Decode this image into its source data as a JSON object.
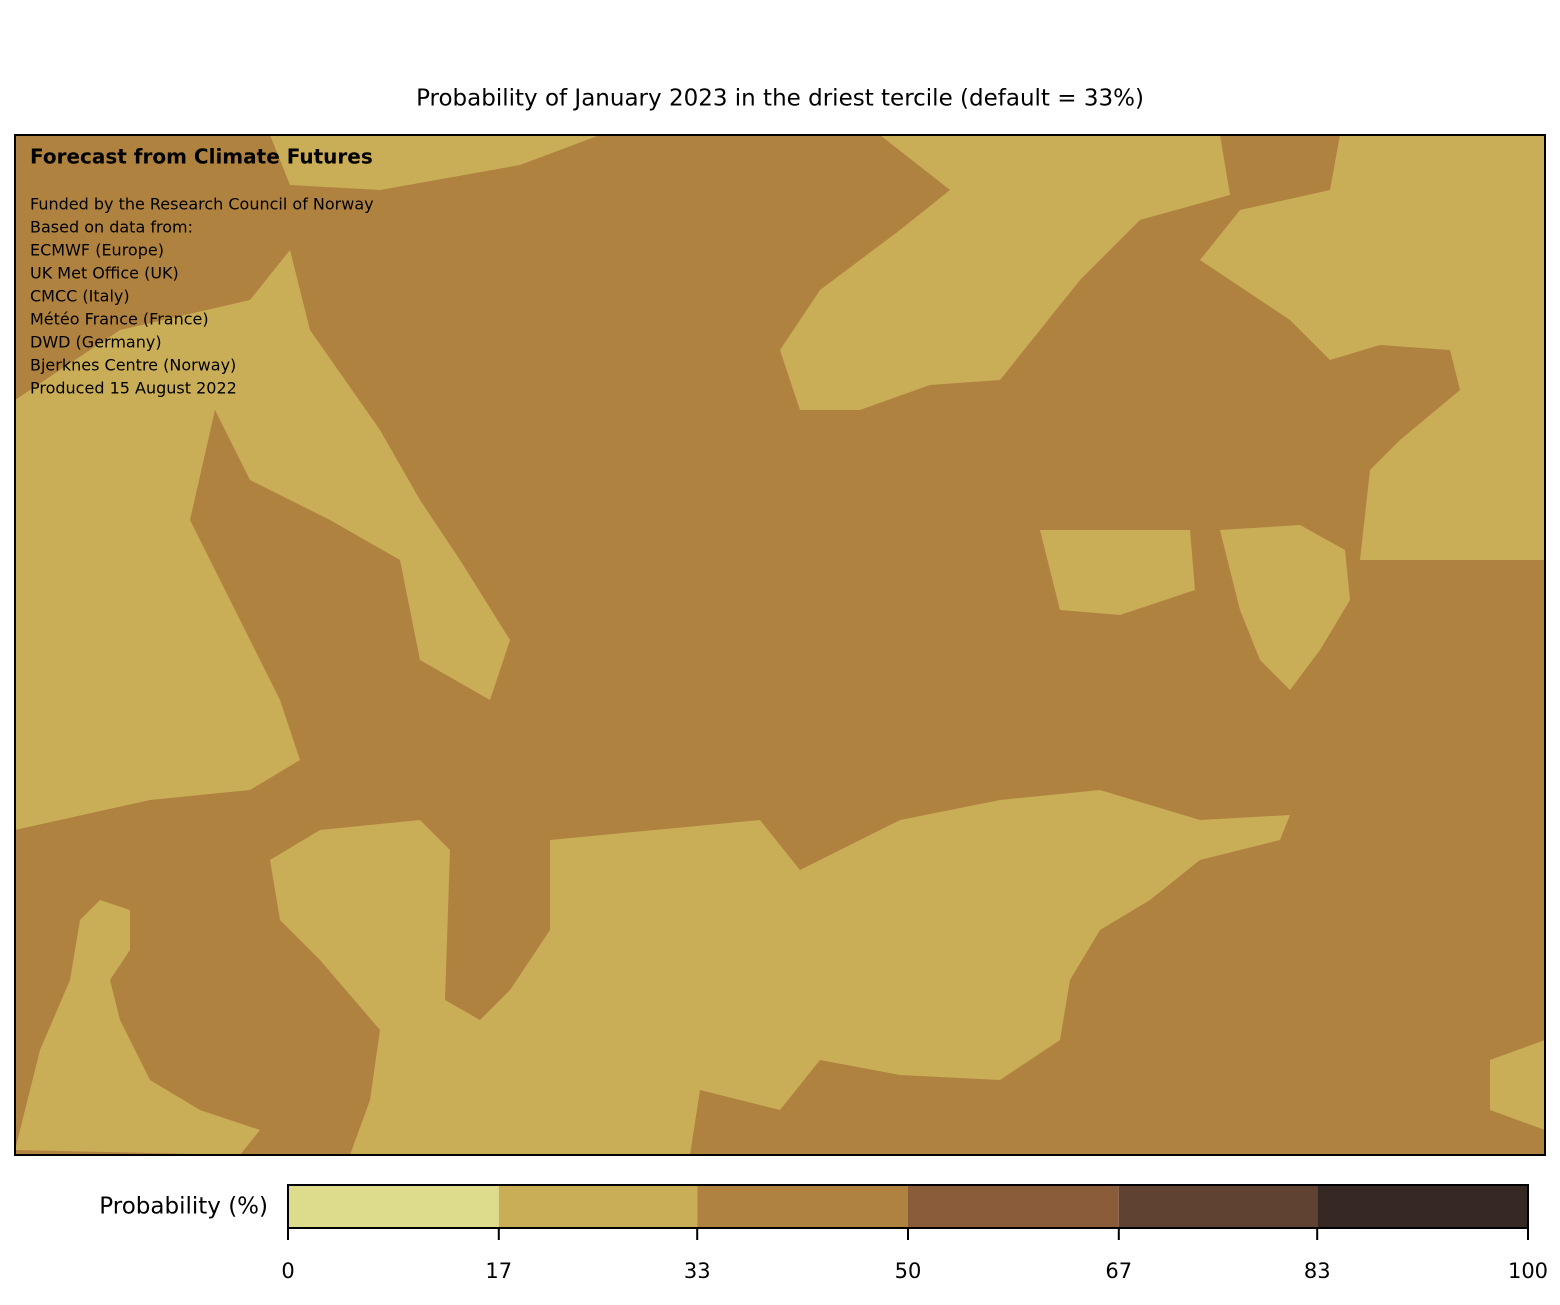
{
  "title": "Probability of January 2023 in the driest tercile (default = 33%)",
  "annotation": {
    "heading": "Forecast from Climate Futures",
    "lines": [
      "Funded by the Research Council of Norway",
      "Based on data from:",
      "ECMWF (Europe)",
      "UK Met Office (UK)",
      "CMCC (Italy)",
      "Météo France (France)",
      "DWD (Germany)",
      "Bjerknes Centre (Norway)",
      "Produced 15 August 2022"
    ]
  },
  "colorbar": {
    "label": "Probability (%)",
    "ticks": [
      0,
      17,
      33,
      50,
      67,
      83,
      100
    ],
    "colors": [
      "#dcdc8c",
      "#c9ad57",
      "#b08240",
      "#8b5c3a",
      "#5f4232",
      "#362823"
    ]
  }
}
